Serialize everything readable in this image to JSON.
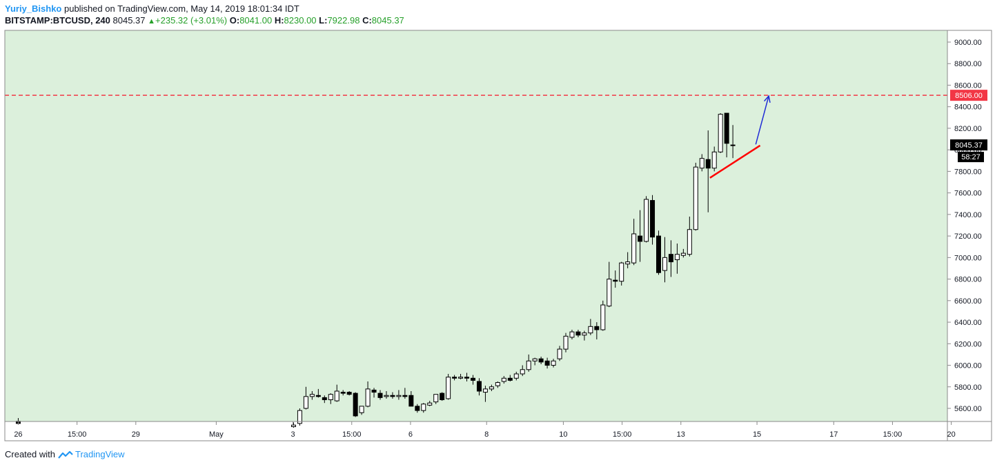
{
  "header": {
    "author": "Yuriy_Bishko",
    "published_text": " published on TradingView.com, May 14, 2019 18:01:34 IDT",
    "symbol": "BITSTAMP:BTCUSD, 240",
    "last": "8045.37",
    "change": "+235.32 (+3.01%)",
    "open_label": "O:",
    "open": "8041.00",
    "high_label": "H:",
    "high": "8230.00",
    "low_label": "L:",
    "low": "7922.98",
    "close_label": "C:",
    "close": "8045.37"
  },
  "footer": {
    "created_with": "Created with",
    "brand": "TradingView"
  },
  "colors": {
    "plot_bg": "#dcf0dc",
    "level_line": "#f23645",
    "trend_line": "#ff0000",
    "arrow": "#1f2bd6",
    "candle_up": "#ffffff",
    "candle_down": "#000000"
  },
  "chart_data": {
    "type": "candlestick",
    "title": "",
    "ylim": [
      5420,
      9200
    ],
    "y_ticks": [
      5600,
      5800,
      6000,
      6200,
      6400,
      6600,
      6800,
      7000,
      7200,
      7400,
      7600,
      7800,
      8000,
      8200,
      8400,
      8600,
      8800,
      9000
    ],
    "y_tick_labels": [
      "5600.00",
      "5800.00",
      "6000.00",
      "6200.00",
      "6400.00",
      "6600.00",
      "6800.00",
      "7000.00",
      "7200.00",
      "7400.00",
      "7600.00",
      "7800.00",
      "8000.00",
      "8200.00",
      "8400.00",
      "8600.00",
      "8800.00",
      "9000.00"
    ],
    "x_range": [
      0,
      150
    ],
    "x_ticks": [
      {
        "bar": 1.5,
        "label": "26"
      },
      {
        "bar": 11,
        "label": "15:00"
      },
      {
        "bar": 20.5,
        "label": "29"
      },
      {
        "bar": 33.5,
        "label": "May"
      },
      {
        "bar": 45.9,
        "label": "3"
      },
      {
        "bar": 55.4,
        "label": "15:00"
      },
      {
        "bar": 64.9,
        "label": "6"
      },
      {
        "bar": 77.2,
        "label": "8"
      },
      {
        "bar": 89.6,
        "label": "10"
      },
      {
        "bar": 99.1,
        "label": "15:00"
      },
      {
        "bar": 108.6,
        "label": "13"
      },
      {
        "bar": 120.9,
        "label": "15"
      },
      {
        "bar": 133.3,
        "label": "17"
      },
      {
        "bar": 142.8,
        "label": "15:00"
      },
      {
        "bar": 152.3,
        "label": "20"
      }
    ],
    "level_line": {
      "value": 8506,
      "label": "8506.00"
    },
    "last_price_label": "8045.37",
    "countdown_label": "58:27",
    "trend_line": {
      "x0": 113.3,
      "y0": 7740,
      "x1": 121.4,
      "y1": 8040
    },
    "arrow": {
      "x0": 120.7,
      "y0": 8050,
      "x1": 122.8,
      "y1": 8500
    },
    "candles": [
      {
        "x": 1.5,
        "o": 5480,
        "h": 5510,
        "l": 5450,
        "c": 5460
      },
      {
        "x": 46,
        "o": 5430,
        "h": 5470,
        "l": 5420,
        "c": 5445
      },
      {
        "x": 47,
        "o": 5460,
        "h": 5600,
        "l": 5440,
        "c": 5580
      },
      {
        "x": 48,
        "o": 5600,
        "h": 5800,
        "l": 5590,
        "c": 5710
      },
      {
        "x": 49,
        "o": 5710,
        "h": 5760,
        "l": 5680,
        "c": 5730
      },
      {
        "x": 50,
        "o": 5720,
        "h": 5780,
        "l": 5700,
        "c": 5710
      },
      {
        "x": 51,
        "o": 5700,
        "h": 5720,
        "l": 5650,
        "c": 5680
      },
      {
        "x": 52,
        "o": 5680,
        "h": 5740,
        "l": 5640,
        "c": 5730
      },
      {
        "x": 53,
        "o": 5670,
        "h": 5820,
        "l": 5660,
        "c": 5760
      },
      {
        "x": 54,
        "o": 5750,
        "h": 5770,
        "l": 5720,
        "c": 5740
      },
      {
        "x": 55,
        "o": 5750,
        "h": 5760,
        "l": 5720,
        "c": 5730
      },
      {
        "x": 56,
        "o": 5740,
        "h": 5750,
        "l": 5520,
        "c": 5530
      },
      {
        "x": 57,
        "o": 5560,
        "h": 5620,
        "l": 5540,
        "c": 5620
      },
      {
        "x": 58,
        "o": 5620,
        "h": 5850,
        "l": 5610,
        "c": 5780
      },
      {
        "x": 59,
        "o": 5770,
        "h": 5790,
        "l": 5700,
        "c": 5750
      },
      {
        "x": 60,
        "o": 5740,
        "h": 5770,
        "l": 5680,
        "c": 5700
      },
      {
        "x": 61,
        "o": 5710,
        "h": 5760,
        "l": 5690,
        "c": 5720
      },
      {
        "x": 62,
        "o": 5720,
        "h": 5750,
        "l": 5690,
        "c": 5710
      },
      {
        "x": 63,
        "o": 5710,
        "h": 5770,
        "l": 5680,
        "c": 5720
      },
      {
        "x": 64,
        "o": 5720,
        "h": 5790,
        "l": 5690,
        "c": 5710
      },
      {
        "x": 65,
        "o": 5720,
        "h": 5760,
        "l": 5620,
        "c": 5620
      },
      {
        "x": 66,
        "o": 5620,
        "h": 5640,
        "l": 5560,
        "c": 5580
      },
      {
        "x": 67,
        "o": 5580,
        "h": 5650,
        "l": 5560,
        "c": 5640
      },
      {
        "x": 68,
        "o": 5630,
        "h": 5670,
        "l": 5620,
        "c": 5650
      },
      {
        "x": 69,
        "o": 5660,
        "h": 5730,
        "l": 5640,
        "c": 5730
      },
      {
        "x": 70,
        "o": 5740,
        "h": 5750,
        "l": 5670,
        "c": 5680
      },
      {
        "x": 71,
        "o": 5690,
        "h": 5920,
        "l": 5680,
        "c": 5890
      },
      {
        "x": 72,
        "o": 5890,
        "h": 5910,
        "l": 5860,
        "c": 5880
      },
      {
        "x": 73,
        "o": 5880,
        "h": 5920,
        "l": 5870,
        "c": 5890
      },
      {
        "x": 74,
        "o": 5890,
        "h": 5930,
        "l": 5850,
        "c": 5880
      },
      {
        "x": 75,
        "o": 5880,
        "h": 5910,
        "l": 5820,
        "c": 5860
      },
      {
        "x": 76,
        "o": 5850,
        "h": 5880,
        "l": 5720,
        "c": 5760
      },
      {
        "x": 77,
        "o": 5750,
        "h": 5810,
        "l": 5660,
        "c": 5780
      },
      {
        "x": 78,
        "o": 5780,
        "h": 5820,
        "l": 5760,
        "c": 5800
      },
      {
        "x": 79,
        "o": 5810,
        "h": 5850,
        "l": 5790,
        "c": 5840
      },
      {
        "x": 80,
        "o": 5850,
        "h": 5900,
        "l": 5830,
        "c": 5880
      },
      {
        "x": 81,
        "o": 5880,
        "h": 5910,
        "l": 5850,
        "c": 5860
      },
      {
        "x": 82,
        "o": 5880,
        "h": 5940,
        "l": 5860,
        "c": 5920
      },
      {
        "x": 83,
        "o": 5920,
        "h": 6000,
        "l": 5900,
        "c": 5960
      },
      {
        "x": 84,
        "o": 5960,
        "h": 6100,
        "l": 5940,
        "c": 6040
      },
      {
        "x": 85,
        "o": 6040,
        "h": 6070,
        "l": 6000,
        "c": 6060
      },
      {
        "x": 86,
        "o": 6060,
        "h": 6080,
        "l": 6010,
        "c": 6030
      },
      {
        "x": 87,
        "o": 6040,
        "h": 6070,
        "l": 5970,
        "c": 6000
      },
      {
        "x": 88,
        "o": 6000,
        "h": 6060,
        "l": 5980,
        "c": 6040
      },
      {
        "x": 89,
        "o": 6060,
        "h": 6180,
        "l": 6040,
        "c": 6150
      },
      {
        "x": 90,
        "o": 6150,
        "h": 6300,
        "l": 6120,
        "c": 6270
      },
      {
        "x": 91,
        "o": 6260,
        "h": 6330,
        "l": 6240,
        "c": 6310
      },
      {
        "x": 92,
        "o": 6310,
        "h": 6330,
        "l": 6260,
        "c": 6280
      },
      {
        "x": 93,
        "o": 6280,
        "h": 6320,
        "l": 6230,
        "c": 6300
      },
      {
        "x": 94,
        "o": 6300,
        "h": 6430,
        "l": 6280,
        "c": 6360
      },
      {
        "x": 95,
        "o": 6360,
        "h": 6400,
        "l": 6240,
        "c": 6330
      },
      {
        "x": 96,
        "o": 6330,
        "h": 6600,
        "l": 6320,
        "c": 6560
      },
      {
        "x": 97,
        "o": 6550,
        "h": 6960,
        "l": 6540,
        "c": 6800
      },
      {
        "x": 98,
        "o": 6790,
        "h": 6880,
        "l": 6720,
        "c": 6780
      },
      {
        "x": 99,
        "o": 6780,
        "h": 6960,
        "l": 6740,
        "c": 6950
      },
      {
        "x": 100,
        "o": 6940,
        "h": 7050,
        "l": 6900,
        "c": 6960
      },
      {
        "x": 101,
        "o": 6950,
        "h": 7360,
        "l": 6930,
        "c": 7220
      },
      {
        "x": 102,
        "o": 7200,
        "h": 7440,
        "l": 6960,
        "c": 7150
      },
      {
        "x": 103,
        "o": 7150,
        "h": 7570,
        "l": 7140,
        "c": 7540
      },
      {
        "x": 104,
        "o": 7530,
        "h": 7580,
        "l": 7120,
        "c": 7190
      },
      {
        "x": 105,
        "o": 7200,
        "h": 7250,
        "l": 6840,
        "c": 6860
      },
      {
        "x": 106,
        "o": 6880,
        "h": 7190,
        "l": 6770,
        "c": 7000
      },
      {
        "x": 107,
        "o": 7030,
        "h": 7160,
        "l": 6820,
        "c": 6960
      },
      {
        "x": 108,
        "o": 6980,
        "h": 7130,
        "l": 6850,
        "c": 7030
      },
      {
        "x": 109,
        "o": 7020,
        "h": 7080,
        "l": 7000,
        "c": 7040
      },
      {
        "x": 110,
        "o": 7030,
        "h": 7380,
        "l": 7010,
        "c": 7260
      },
      {
        "x": 111,
        "o": 7260,
        "h": 7880,
        "l": 7250,
        "c": 7840
      },
      {
        "x": 112,
        "o": 7830,
        "h": 7960,
        "l": 7800,
        "c": 7920
      },
      {
        "x": 113,
        "o": 7910,
        "h": 8180,
        "l": 7420,
        "c": 7830
      },
      {
        "x": 114,
        "o": 7830,
        "h": 8030,
        "l": 7800,
        "c": 7980
      },
      {
        "x": 115,
        "o": 7980,
        "h": 8340,
        "l": 7970,
        "c": 8330
      },
      {
        "x": 116,
        "o": 8340,
        "h": 8340,
        "l": 7930,
        "c": 8060
      },
      {
        "x": 117,
        "o": 8041,
        "h": 8230,
        "l": 7923,
        "c": 8045
      }
    ]
  }
}
